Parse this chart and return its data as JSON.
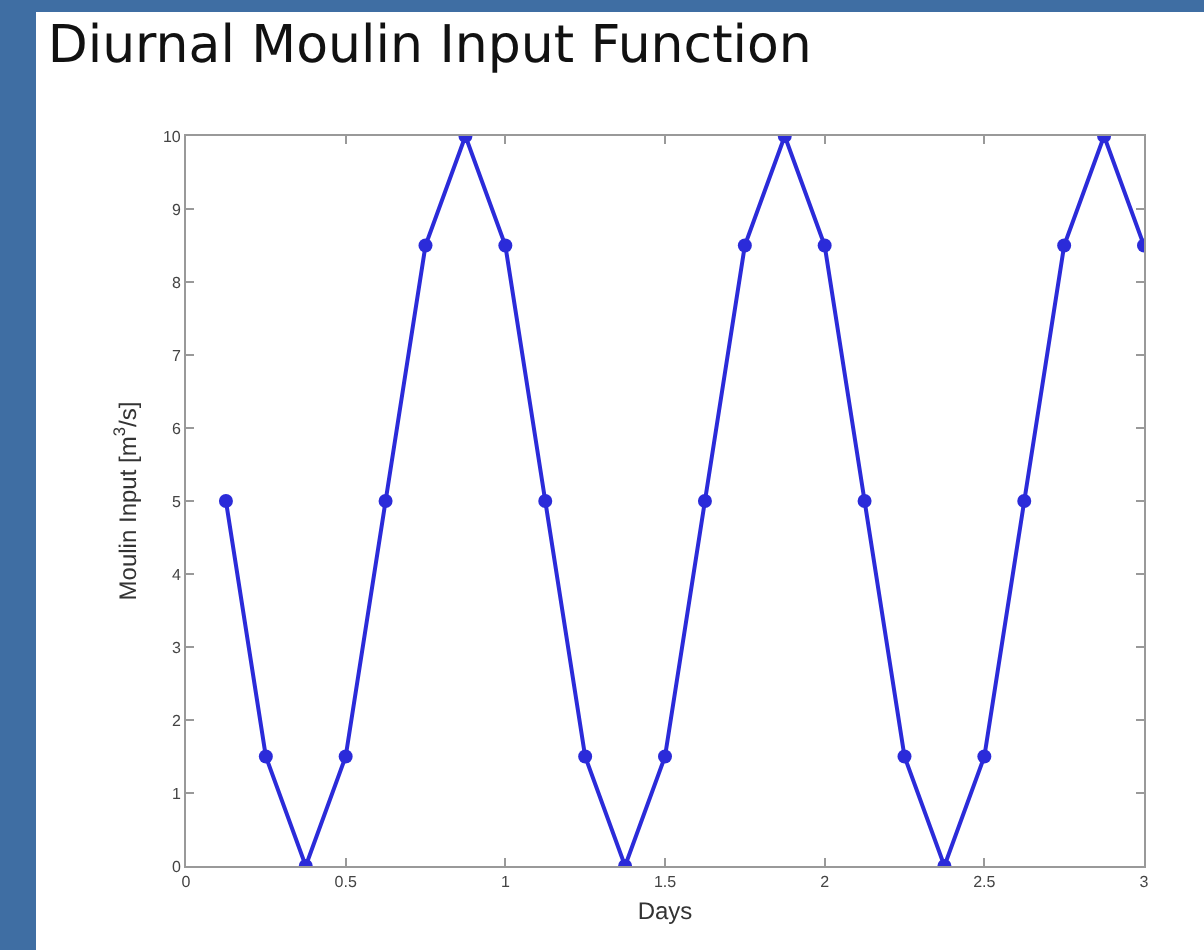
{
  "chart_data": {
    "type": "line",
    "title": "Diurnal Moulin Input Function",
    "xlabel": "Days",
    "ylabel": "Moulin Input [m$^{3}$/s]",
    "x": [
      0.125,
      0.25,
      0.375,
      0.5,
      0.625,
      0.75,
      0.875,
      1.0,
      1.125,
      1.25,
      1.375,
      1.5,
      1.625,
      1.75,
      1.875,
      2.0,
      2.125,
      2.25,
      2.375,
      2.5,
      2.625,
      2.75,
      2.875,
      3.0
    ],
    "series": [
      {
        "color": "#2b2bd9",
        "values": [
          5,
          1.5,
          0,
          1.5,
          5,
          8.5,
          10,
          8.5,
          5,
          1.5,
          0,
          1.5,
          5,
          8.5,
          10,
          8.5,
          5,
          1.5,
          0,
          1.5,
          5,
          8.5,
          10,
          8.5
        ]
      }
    ],
    "xlim": [
      0,
      3
    ],
    "xticks": [
      0,
      0.5,
      1,
      1.5,
      2,
      2.5,
      3
    ],
    "ylim": [
      0,
      10
    ],
    "yticks": [
      0,
      1,
      2,
      3,
      4,
      5,
      6,
      7,
      8,
      9,
      10
    ],
    "marker": "circle",
    "line_style": "solid"
  }
}
